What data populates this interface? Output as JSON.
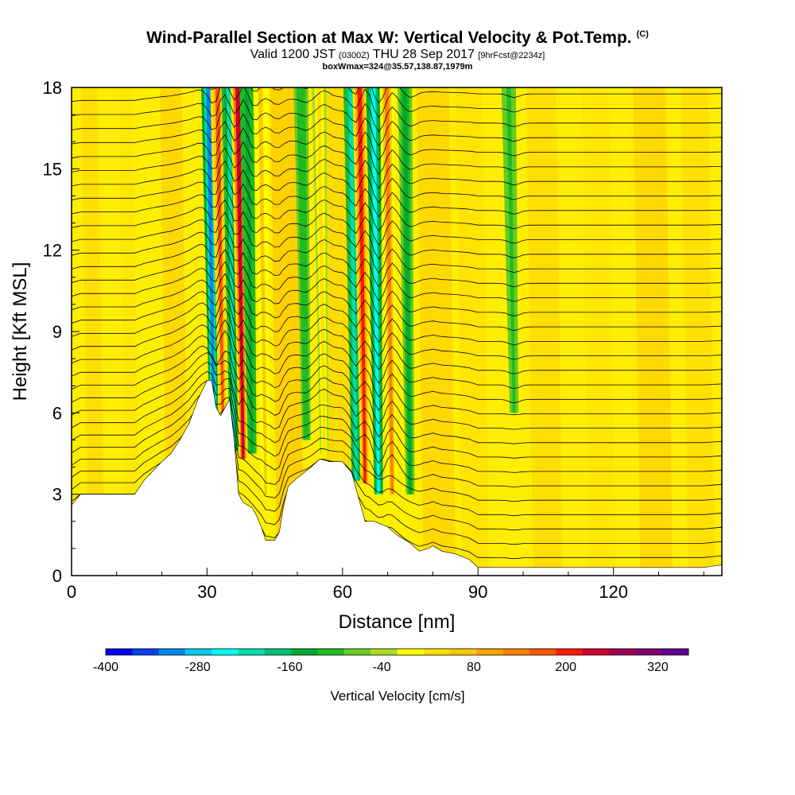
{
  "title": {
    "main": "Wind-Parallel Section at Max W: Vertical Velocity & Pot.Temp.",
    "copyright": "(C)",
    "valid_prefix": "Valid 1200 JST",
    "valid_utc": "(0300Z)",
    "valid_date": "THU 28 Sep 2017",
    "forecast": "[9hrFcst@2234z]",
    "box": "boxWmax=324@35.57,138.87,1979m"
  },
  "chart_data": {
    "type": "heatmap",
    "title": "Wind-Parallel Section at Max W: Vertical Velocity & Pot.Temp.",
    "xlabel": "Distance [nm]",
    "ylabel": "Height [Kft MSL]",
    "xlim": [
      0,
      144
    ],
    "ylim": [
      0,
      18
    ],
    "x_ticks": [
      0,
      30,
      60,
      90,
      120
    ],
    "y_ticks": [
      0,
      3,
      6,
      9,
      12,
      15,
      18
    ],
    "colorbar": {
      "label": "Vertical Velocity [cm/s]",
      "min": -400,
      "max": 360,
      "step": 40,
      "tick_labels": [
        -400,
        -280,
        -160,
        -40,
        80,
        200,
        320
      ],
      "colors": [
        "#0000ee",
        "#0040f0",
        "#0088f0",
        "#00ccf0",
        "#00ffee",
        "#00e0aa",
        "#00c070",
        "#00aa30",
        "#22bb22",
        "#66cc22",
        "#aadd22",
        "#ffff00",
        "#ffe000",
        "#ffc800",
        "#ffa500",
        "#ff8000",
        "#ff5500",
        "#ff1a00",
        "#cc0030",
        "#a00050",
        "#800070",
        "#600090"
      ]
    },
    "terrain_profile": {
      "x": [
        0,
        2,
        14,
        16,
        20,
        22,
        24,
        26,
        28,
        30,
        31,
        32,
        33,
        35,
        36,
        37,
        38,
        40,
        41,
        42,
        43,
        45,
        46,
        47,
        48,
        50,
        53,
        55,
        57,
        60,
        62,
        63,
        64,
        65,
        66,
        67,
        70,
        72,
        75,
        77,
        79,
        80,
        82,
        85,
        88,
        90,
        92,
        94,
        96,
        100,
        110,
        120,
        125,
        130,
        135,
        138,
        140,
        144
      ],
      "height_kft": [
        2.6,
        3.0,
        3.0,
        3.5,
        4.2,
        4.5,
        5.0,
        5.6,
        6.5,
        7.2,
        7.2,
        6.2,
        5.9,
        6.5,
        5.0,
        3.0,
        2.7,
        2.5,
        2.2,
        1.8,
        1.3,
        1.3,
        1.6,
        2.6,
        3.3,
        3.6,
        4.0,
        4.3,
        4.2,
        4.2,
        3.8,
        3.2,
        2.6,
        2.0,
        2.0,
        2.0,
        1.8,
        1.5,
        1.2,
        0.9,
        1.0,
        1.1,
        0.9,
        0.8,
        0.6,
        0.3,
        0.3,
        0.3,
        0.3,
        0.3,
        0.3,
        0.3,
        0.3,
        0.3,
        0.3,
        0.3,
        0.3,
        0.4
      ]
    },
    "vertical_velocity_features": [
      {
        "x_center": 31.5,
        "z_bottom": 5.5,
        "z_top": 18,
        "w_cms": -300
      },
      {
        "x_center": 33.5,
        "z_bottom": 6.0,
        "z_top": 18,
        "w_cms": 240
      },
      {
        "x_center": 36.0,
        "z_bottom": 4.6,
        "z_top": 18,
        "w_cms": -180
      },
      {
        "x_center": 38.0,
        "z_bottom": 4.3,
        "z_top": 18,
        "w_cms": 320
      },
      {
        "x_center": 40.0,
        "z_bottom": 4.5,
        "z_top": 18,
        "w_cms": -120
      },
      {
        "x_center": 43.0,
        "z_bottom": 3.0,
        "z_top": 18,
        "w_cms": 120
      },
      {
        "x_center": 52.0,
        "z_bottom": 5.0,
        "z_top": 18,
        "w_cms": -80
      },
      {
        "x_center": 56.0,
        "z_bottom": 4.5,
        "z_top": 18,
        "w_cms": 100
      },
      {
        "x_center": 63.0,
        "z_bottom": 3.5,
        "z_top": 18,
        "w_cms": -200
      },
      {
        "x_center": 65.0,
        "z_bottom": 3.4,
        "z_top": 18,
        "w_cms": 280
      },
      {
        "x_center": 68.0,
        "z_bottom": 3.0,
        "z_top": 18,
        "w_cms": -240
      },
      {
        "x_center": 71.0,
        "z_bottom": 3.0,
        "z_top": 18,
        "w_cms": 200
      },
      {
        "x_center": 75.0,
        "z_bottom": 3.0,
        "z_top": 18,
        "w_cms": -100
      },
      {
        "x_center": 98.0,
        "z_bottom": 6.0,
        "z_top": 18,
        "w_cms": -60
      }
    ],
    "grid": false
  }
}
